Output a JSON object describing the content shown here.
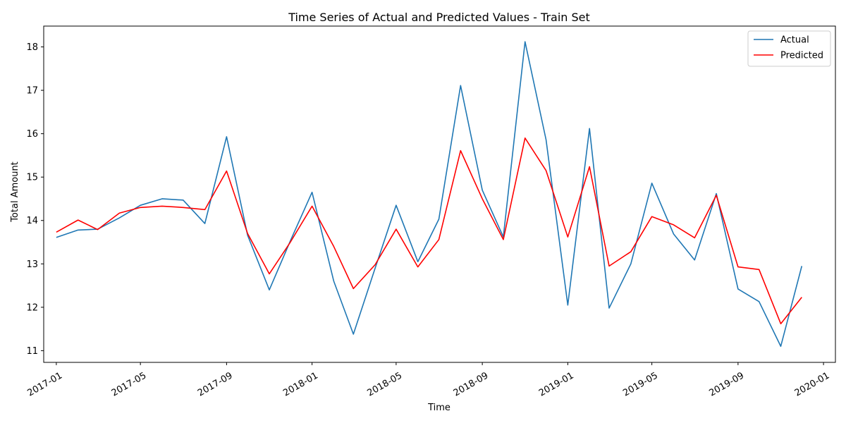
{
  "chart_data": {
    "type": "line",
    "title": "Time Series of Actual and Predicted Values - Train Set",
    "xlabel": "Time",
    "ylabel": "Total Amount",
    "x_range": [
      "2016-12-14",
      "2020-01-18"
    ],
    "ylim": [
      10.73,
      18.48
    ],
    "x_ticks": [
      "2017-01",
      "2017-05",
      "2017-09",
      "2018-01",
      "2018-05",
      "2018-09",
      "2019-01",
      "2019-05",
      "2019-09",
      "2020-01"
    ],
    "y_ticks": [
      11,
      12,
      13,
      14,
      15,
      16,
      17,
      18
    ],
    "grid": false,
    "legend_position": "top-right",
    "x": [
      "2017-01-01",
      "2017-02-01",
      "2017-03-01",
      "2017-04-01",
      "2017-05-01",
      "2017-06-01",
      "2017-07-01",
      "2017-08-01",
      "2017-09-01",
      "2017-10-01",
      "2017-11-01",
      "2017-12-01",
      "2018-01-01",
      "2018-02-01",
      "2018-03-01",
      "2018-04-01",
      "2018-05-01",
      "2018-06-01",
      "2018-07-01",
      "2018-08-01",
      "2018-09-01",
      "2018-10-01",
      "2018-11-01",
      "2018-12-01",
      "2019-01-01",
      "2019-02-01",
      "2019-03-01",
      "2019-04-01",
      "2019-05-01",
      "2019-06-01",
      "2019-07-01",
      "2019-08-01",
      "2019-09-01",
      "2019-10-01",
      "2019-11-01",
      "2019-12-01"
    ],
    "series": [
      {
        "name": "Actual",
        "color": "#1f77b4",
        "values": [
          13.61,
          13.78,
          13.8,
          14.06,
          14.35,
          14.5,
          14.47,
          13.93,
          15.93,
          13.66,
          12.4,
          13.53,
          14.65,
          12.6,
          11.38,
          12.9,
          14.35,
          13.05,
          14.03,
          17.11,
          14.7,
          13.62,
          18.12,
          15.86,
          12.05,
          16.12,
          11.98,
          13.0,
          14.86,
          13.69,
          13.09,
          14.62,
          12.42,
          12.13,
          11.1,
          12.95
        ]
      },
      {
        "name": "Predicted",
        "color": "#ff0000",
        "values": [
          13.73,
          14.01,
          13.79,
          14.17,
          14.3,
          14.33,
          14.3,
          14.25,
          15.14,
          13.7,
          12.77,
          13.5,
          14.33,
          13.4,
          12.43,
          12.98,
          13.8,
          12.93,
          13.56,
          15.61,
          14.5,
          13.56,
          15.9,
          15.15,
          13.62,
          15.24,
          12.95,
          13.28,
          14.09,
          13.9,
          13.6,
          14.58,
          12.93,
          12.87,
          11.62,
          12.23
        ]
      }
    ]
  }
}
